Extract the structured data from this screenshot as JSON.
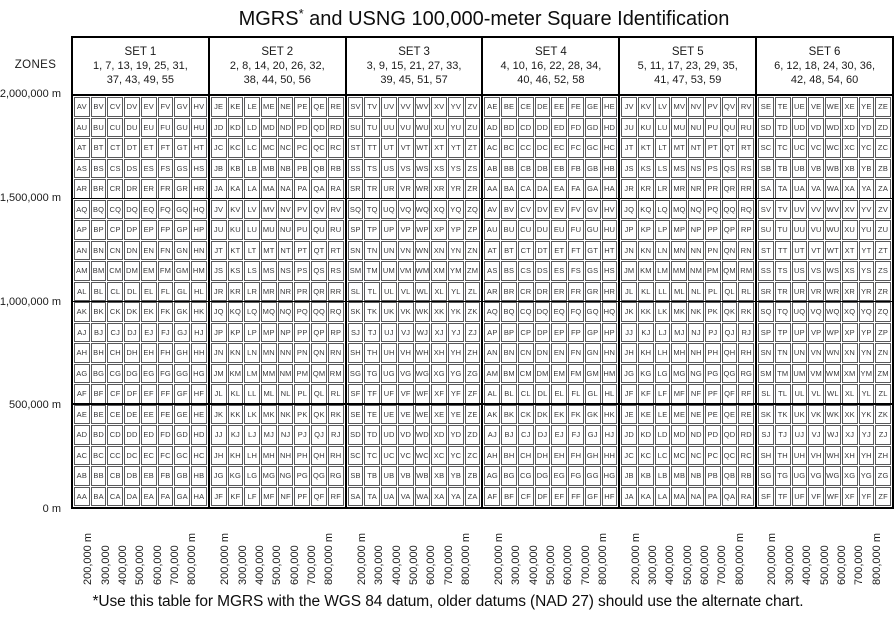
{
  "title": {
    "text_before_sup": "MGRS",
    "sup": "*",
    "text_after_sup": " and USNG 100,000-meter Square Identification"
  },
  "footnote": "*Use this table for MGRS with the WGS 84 datum, older datums (NAD 27) should use the alternate chart.",
  "axes": {
    "zones_label": "ZONES",
    "y_tick_labels": [
      "2,000,000 m",
      "1,500,000 m",
      "1,000,000 m",
      "500,000 m",
      "0 m"
    ],
    "x_tick_labels": [
      "200,000 m",
      "300,000",
      "400,000",
      "500,000",
      "600,000",
      "700,000",
      "800,000 m"
    ]
  },
  "chart_data": {
    "type": "table",
    "title": "MGRS* and USNG 100,000-meter Square Identification",
    "description": "100,000-meter grid square two-letter identifications arranged by zone set; cell text = column letter + row letter",
    "northing_range_m": [
      0,
      2000000
    ],
    "cell_size_m": 100000,
    "y_ticks_m": [
      2000000,
      1500000,
      1000000,
      500000,
      0
    ],
    "x_ticks_m_per_set": [
      200000,
      300000,
      400000,
      500000,
      600000,
      700000,
      800000
    ],
    "rows_per_set": 20,
    "columns_per_set": 8,
    "sets": [
      {
        "label": "SET 1",
        "zones": [
          1,
          7,
          13,
          19,
          25,
          31,
          37,
          43,
          49,
          55
        ],
        "zones_lines": [
          "1, 7, 13, 19, 25, 31,",
          "37, 43, 49, 55"
        ],
        "column_letters": [
          "A",
          "B",
          "C",
          "D",
          "E",
          "F",
          "G",
          "H"
        ],
        "row_letters_top_to_bottom": [
          "V",
          "U",
          "T",
          "S",
          "R",
          "Q",
          "P",
          "N",
          "M",
          "L",
          "K",
          "J",
          "H",
          "G",
          "F",
          "E",
          "D",
          "C",
          "B",
          "A"
        ]
      },
      {
        "label": "SET 2",
        "zones": [
          2,
          8,
          14,
          20,
          26,
          32,
          38,
          44,
          50,
          56
        ],
        "zones_lines": [
          "2, 8, 14, 20, 26, 32,",
          "38, 44, 50, 56"
        ],
        "column_letters": [
          "J",
          "K",
          "L",
          "M",
          "N",
          "P",
          "Q",
          "R"
        ],
        "row_letters_top_to_bottom": [
          "E",
          "D",
          "C",
          "B",
          "A",
          "V",
          "U",
          "T",
          "S",
          "R",
          "Q",
          "P",
          "N",
          "M",
          "L",
          "K",
          "J",
          "H",
          "G",
          "F"
        ]
      },
      {
        "label": "SET 3",
        "zones": [
          3,
          9,
          15,
          21,
          27,
          33,
          39,
          45,
          51,
          57
        ],
        "zones_lines": [
          "3, 9, 15, 21, 27, 33,",
          "39, 45, 51, 57"
        ],
        "column_letters": [
          "S",
          "T",
          "U",
          "V",
          "W",
          "X",
          "Y",
          "Z"
        ],
        "row_letters_top_to_bottom": [
          "V",
          "U",
          "T",
          "S",
          "R",
          "Q",
          "P",
          "N",
          "M",
          "L",
          "K",
          "J",
          "H",
          "G",
          "F",
          "E",
          "D",
          "C",
          "B",
          "A"
        ]
      },
      {
        "label": "SET 4",
        "zones": [
          4,
          10,
          16,
          22,
          28,
          34,
          40,
          46,
          52,
          58
        ],
        "zones_lines": [
          "4, 10, 16, 22, 28, 34,",
          "40, 46, 52, 58"
        ],
        "column_letters": [
          "A",
          "B",
          "C",
          "D",
          "E",
          "F",
          "G",
          "H"
        ],
        "row_letters_top_to_bottom": [
          "E",
          "D",
          "C",
          "B",
          "A",
          "V",
          "U",
          "T",
          "S",
          "R",
          "Q",
          "P",
          "N",
          "M",
          "L",
          "K",
          "J",
          "H",
          "G",
          "F"
        ]
      },
      {
        "label": "SET 5",
        "zones": [
          5,
          11,
          17,
          23,
          29,
          35,
          41,
          47,
          53,
          59
        ],
        "zones_lines": [
          "5, 11, 17, 23, 29, 35,",
          "41, 47, 53, 59"
        ],
        "column_letters": [
          "J",
          "K",
          "L",
          "M",
          "N",
          "P",
          "Q",
          "R"
        ],
        "row_letters_top_to_bottom": [
          "V",
          "U",
          "T",
          "S",
          "R",
          "Q",
          "P",
          "N",
          "M",
          "L",
          "K",
          "J",
          "H",
          "G",
          "F",
          "E",
          "D",
          "C",
          "B",
          "A"
        ]
      },
      {
        "label": "SET 6",
        "zones": [
          6,
          12,
          18,
          24,
          30,
          36,
          42,
          48,
          54,
          60
        ],
        "zones_lines": [
          "6, 12, 18, 24, 30, 36,",
          "42, 48, 54, 60"
        ],
        "column_letters": [
          "S",
          "T",
          "U",
          "V",
          "W",
          "X",
          "Y",
          "Z"
        ],
        "row_letters_top_to_bottom": [
          "E",
          "D",
          "C",
          "B",
          "A",
          "V",
          "U",
          "T",
          "S",
          "R",
          "Q",
          "P",
          "N",
          "M",
          "L",
          "K",
          "J",
          "H",
          "G",
          "F"
        ]
      }
    ],
    "major_gridline_rows_m": [
      1500000,
      1000000,
      500000
    ]
  },
  "colors": {
    "background": "#ffffff",
    "set_border": "#000000",
    "cell_border": "#59595b",
    "cell_text": "#38383a",
    "text": "#0d0d0d"
  }
}
